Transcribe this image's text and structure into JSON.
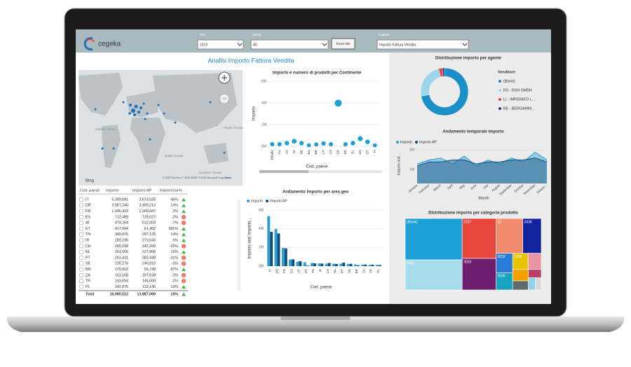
{
  "header": {
    "logo": "cegeka",
    "filters": [
      {
        "label": "Year",
        "value": "2019"
      },
      {
        "label": "Month",
        "value": "All"
      },
      {
        "label": "Caption",
        "value": "Importo Fattura Vendita"
      }
    ],
    "reset_button": "Reset filtri"
  },
  "report_title": "Analisi Importo Fattura Vendita",
  "map": {
    "labels": [
      "Atlantic Ocean",
      "Pacific Ocean",
      "Indian Ocean",
      "Southern Ocean"
    ],
    "attribution": "© 2020 TomTom © 2020 HERE © 2020 Microsoft Corporation",
    "terms": "Terms",
    "provider": "Bing"
  },
  "table": {
    "columns": [
      "Cod. paese",
      "Importo",
      "Importo AP",
      "ImportoVar%"
    ],
    "rows": [
      [
        "IT",
        "5,359,091",
        "3,673,025",
        "46%"
      ],
      [
        "DE",
        "3,987,240",
        "3,499,213",
        "14%"
      ],
      [
        "FR",
        "1,946,413",
        "1,900,447",
        "2%"
      ],
      [
        "ES",
        "712,455",
        "725,627",
        "-2%"
      ],
      [
        "AT",
        "478,164",
        "512,655",
        "-7%"
      ],
      [
        "ET",
        "417,994",
        "61,402",
        "581%"
      ],
      [
        "TN",
        "340,076",
        "297,125",
        "14%"
      ],
      [
        "IR",
        "289,236",
        "270,643",
        "6%"
      ],
      [
        "CH",
        "265,298",
        "342,200",
        "-22%"
      ],
      [
        "NL",
        "261,665",
        "227,908",
        "16%"
      ],
      [
        "PT",
        "263,431",
        "382,348",
        "-31%"
      ],
      [
        "SE",
        "235,276",
        "246,810",
        "-5%"
      ],
      [
        "BR",
        "179,002",
        "95,740",
        "87%"
      ],
      [
        "ZA",
        "163,166",
        "167,528",
        "-2%"
      ],
      [
        "TR",
        "143,054",
        "146,000",
        "-2%"
      ],
      [
        "PL",
        "142,875",
        "122,145",
        "16%"
      ]
    ],
    "total": [
      "Total",
      "16,080,512",
      "13,887,000",
      "16%"
    ]
  },
  "chart_data": [
    {
      "type": "bubble",
      "title": "Importo e numero di prodotti per Continente",
      "y_label": "Importo",
      "x_label": "Cod. paese",
      "color": "#1a9fd6",
      "categories": [
        "(Blank)",
        "AU",
        "AS",
        "AT",
        "BE",
        "BG",
        "BR",
        "CH",
        "CZ",
        "DE",
        "DK",
        "EL",
        "ES",
        "ET",
        "FI"
      ],
      "values": [
        200000,
        200000,
        300000,
        478164,
        300000,
        100000,
        179002,
        265298,
        200000,
        3987240,
        200000,
        300000,
        712455,
        417994,
        100000
      ],
      "ylim": [
        0,
        6000000
      ],
      "yticks": [
        {
          "value": 0,
          "label": "0M"
        },
        {
          "value": 2000000,
          "label": "2M"
        },
        {
          "value": 4000000,
          "label": "4M"
        },
        {
          "value": 6000000,
          "label": "6M"
        }
      ]
    },
    {
      "type": "bar",
      "title": "Andamento Importo per area geo",
      "y_label": "Importo and Importo...",
      "x_label": "Cod. paese",
      "categories": [
        "IT",
        "DE",
        "FR",
        "ES",
        "AT",
        "ET",
        "TN",
        "IR",
        "CH",
        "NL",
        "PT",
        "SE",
        "BR",
        "ZA",
        "TR",
        "PL"
      ],
      "series": [
        {
          "name": "Importo",
          "color": "#2a9fd8",
          "values": [
            5359091,
            3987240,
            1946413,
            712455,
            478164,
            417994,
            340076,
            289236,
            265298,
            261665,
            263431,
            235276,
            179002,
            163166,
            143054,
            142875
          ]
        },
        {
          "name": "Importo AP",
          "color": "#124e7c",
          "values": [
            3673025,
            3499213,
            1900447,
            725627,
            512655,
            61402,
            297125,
            270643,
            342200,
            227908,
            382348,
            246810,
            95740,
            167528,
            146000,
            122145
          ]
        }
      ],
      "ylim": [
        0,
        6000000
      ],
      "yticks": [
        {
          "value": 0,
          "label": "0M"
        },
        {
          "value": 2000000,
          "label": "2M"
        },
        {
          "value": 4000000,
          "label": "4M"
        },
        {
          "value": 6000000,
          "label": "6M"
        }
      ]
    },
    {
      "type": "pie",
      "donut": true,
      "title": "Distribuzione importo per agente",
      "legend_title": "Venditore",
      "categories": [
        "(Blank)",
        "RS - RSH GMBH",
        "LI - IMPERATO L...",
        "BE - BERGAMIN..."
      ],
      "values": [
        72,
        24,
        2.5,
        1.5
      ],
      "colors": [
        "#1a8fc8",
        "#9bd6ea",
        "#e8453c",
        "#1a3a8a"
      ]
    },
    {
      "type": "area",
      "title": "Andamento temporale importo",
      "y_label": "Importo and ...",
      "x_label": "Month",
      "categories": [
        "January",
        "February",
        "March",
        "April",
        "May",
        "June",
        "July",
        "August",
        "September",
        "October",
        "November",
        "Decem..."
      ],
      "series": [
        {
          "name": "Importo",
          "color": "#2a9fd8",
          "values": [
            1300000,
            1500000,
            1600000,
            1300000,
            1700000,
            1200000,
            1500000,
            1300000,
            1600000,
            1400000,
            1900000,
            1500000
          ]
        },
        {
          "name": "Importo AP",
          "color": "#124e7c",
          "values": [
            1200000,
            1400000,
            1400000,
            1500000,
            1500000,
            1300000,
            1400000,
            1400000,
            1500000,
            1500000,
            1600000,
            1400000
          ]
        }
      ],
      "ylim": [
        300000,
        2300000
      ],
      "yticks": [
        {
          "value": 1000000,
          "label": "1M"
        },
        {
          "value": 2000000,
          "label": "2M"
        }
      ]
    },
    {
      "type": "treemap",
      "title": "Distribuzione importo per categoria prodotto",
      "categories": [
        "(Blank)",
        "3034",
        "3237",
        "3033",
        "52",
        "3436",
        "3032",
        "3035",
        "3338",
        null,
        null,
        null,
        null,
        null,
        null
      ],
      "values": [
        3300000,
        2400000,
        1900000,
        1500000,
        1300000,
        900000,
        450000,
        400000,
        350000,
        300000,
        250000,
        200000,
        150000,
        120000,
        100000
      ],
      "colors": [
        "#1a9fd6",
        "#a6dceb",
        "#e8453c",
        "#6f1d6f",
        "#f38b6f",
        "#12239e",
        "#2b7bd6",
        "#1aa3c0",
        "#e8c400",
        "#e895a8",
        "#f4a100",
        "#5f6b6d",
        "#b93e6b",
        "#8fd3ea",
        "#d9d9d9"
      ]
    }
  ]
}
